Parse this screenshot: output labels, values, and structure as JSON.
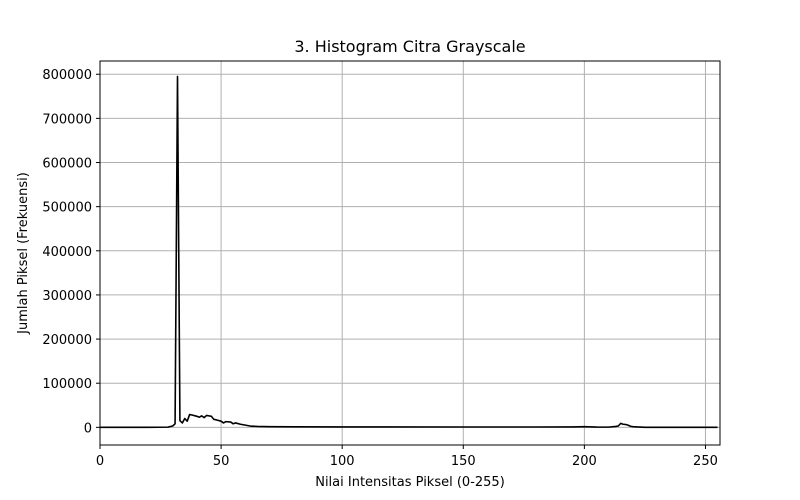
{
  "chart_data": {
    "type": "line",
    "title": "3. Histogram Citra Grayscale",
    "xlabel": "Nilai Intensitas Piksel (0-255)",
    "ylabel": "Jumlah Piksel (Frekuensi)",
    "xlim": [
      0,
      256
    ],
    "ylim": [
      -40000,
      830000
    ],
    "xticks": [
      0,
      50,
      100,
      150,
      200,
      250
    ],
    "yticks": [
      0,
      100000,
      200000,
      300000,
      400000,
      500000,
      600000,
      700000,
      800000
    ],
    "grid": true,
    "line_color": "#000000",
    "series": [
      {
        "x": [
          0,
          10,
          20,
          28,
          30,
          31,
          32,
          33,
          34,
          35,
          36,
          37,
          38,
          40,
          41,
          42,
          43,
          44,
          45,
          46,
          47,
          48,
          50,
          51,
          52,
          54,
          55,
          56,
          58,
          60,
          62,
          65,
          70,
          80,
          100,
          150,
          180,
          195,
          200,
          205,
          210,
          213,
          214,
          215,
          216,
          217,
          218,
          219,
          220,
          225,
          240,
          255
        ],
        "y": [
          0,
          0,
          0,
          500,
          3000,
          8000,
          795000,
          15000,
          10000,
          20000,
          14000,
          29000,
          28000,
          25000,
          23000,
          26000,
          22000,
          27000,
          26000,
          25000,
          18000,
          17000,
          14000,
          10000,
          13000,
          12000,
          8000,
          10000,
          7000,
          5000,
          3000,
          2000,
          1500,
          1200,
          1000,
          800,
          800,
          1000,
          1500,
          700,
          500,
          2000,
          3000,
          9000,
          7000,
          6500,
          5000,
          2500,
          1500,
          0,
          0,
          0
        ]
      }
    ]
  }
}
